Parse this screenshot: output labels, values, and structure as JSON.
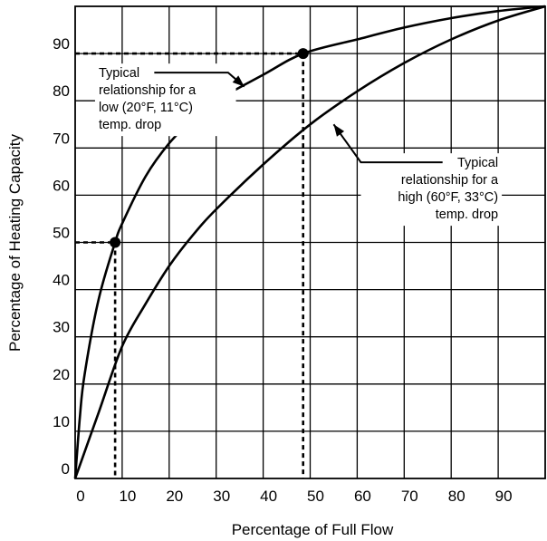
{
  "chart_data": {
    "type": "line",
    "xlabel": "Percentage of Full Flow",
    "ylabel": "Percentage of Heating Capacity",
    "xlim": [
      0,
      100
    ],
    "ylim": [
      0,
      100
    ],
    "grid": true,
    "x_ticks": [
      "0",
      "10",
      "20",
      "30",
      "40",
      "50",
      "60",
      "70",
      "80",
      "90"
    ],
    "y_ticks": [
      "0",
      "10",
      "20",
      "30",
      "40",
      "50",
      "60",
      "70",
      "80",
      "90"
    ],
    "series": [
      {
        "x": [
          0,
          1,
          2,
          5,
          8.5,
          10,
          15,
          20,
          25,
          30,
          40,
          48.5,
          60,
          70,
          80,
          90,
          100
        ],
        "y": [
          0,
          13,
          22,
          38,
          50,
          54,
          64,
          71,
          76,
          80,
          85.5,
          90,
          93,
          95.5,
          97.5,
          99,
          100
        ]
      },
      {
        "x": [
          0,
          5,
          10,
          15,
          20,
          25,
          30,
          40,
          50,
          60,
          70,
          80,
          90,
          100
        ],
        "y": [
          0,
          14,
          28,
          37,
          45,
          51.5,
          57,
          66.5,
          75,
          82,
          88,
          93,
          97,
          100
        ]
      }
    ],
    "highlighted_points": [
      {
        "x": 8.5,
        "y": 50
      },
      {
        "x": 48.5,
        "y": 90
      }
    ],
    "annotations": [
      {
        "lines": [
          "Typical",
          "relationship for a",
          "low (20°F, 11°C)",
          "temp. drop"
        ],
        "align": "left",
        "anchor": [
          5,
          85
        ],
        "arrow_tip": [
          36,
          83
        ]
      },
      {
        "lines": [
          "Typical",
          "relationship for a",
          "high (60°F, 33°C)",
          "temp. drop"
        ],
        "align": "right",
        "anchor": [
          90,
          66
        ],
        "arrow_tip": [
          55,
          75
        ]
      }
    ]
  }
}
